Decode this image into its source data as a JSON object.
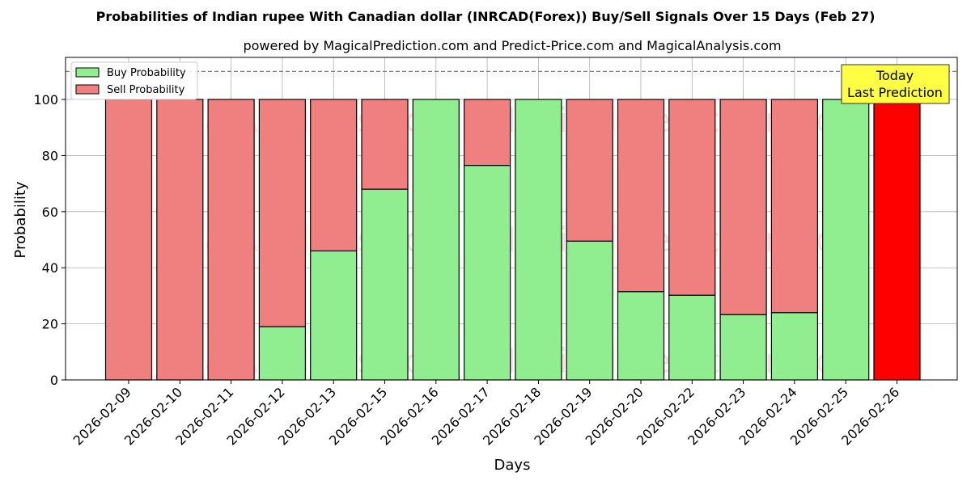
{
  "chart_data": {
    "type": "bar",
    "stacked": true,
    "title": "Probabilities of Indian rupee With Canadian dollar (INRCAD(Forex)) Buy/Sell Signals Over 15 Days (Feb 27)",
    "subtitle": "powered by MagicalPrediction.com and Predict-Price.com and MagicalAnalysis.com",
    "xlabel": "Days",
    "ylabel": "Probability",
    "ylim": [
      0,
      115
    ],
    "yticks": [
      0,
      20,
      40,
      60,
      80,
      100
    ],
    "grid": true,
    "legend_position": "top-left",
    "reference_line": 110,
    "categories": [
      "2026-02-09",
      "2026-02-10",
      "2026-02-11",
      "2026-02-12",
      "2026-02-13",
      "2026-02-15",
      "2026-02-16",
      "2026-02-17",
      "2026-02-18",
      "2026-02-19",
      "2026-02-20",
      "2026-02-22",
      "2026-02-23",
      "2026-02-24",
      "2026-02-25",
      "2026-02-26"
    ],
    "series": [
      {
        "name": "Buy Probability",
        "color": "#90ee90",
        "values": [
          0,
          0,
          0,
          19,
          46,
          68,
          100,
          76.5,
          100,
          49.5,
          31.5,
          30.2,
          23.3,
          24,
          100,
          0
        ]
      },
      {
        "name": "Sell Probability",
        "color": "#f08080",
        "values": [
          100,
          100,
          100,
          81,
          54,
          32,
          0,
          23.5,
          0,
          50.5,
          68.5,
          69.8,
          76.7,
          76,
          0,
          100
        ]
      }
    ],
    "highlight": {
      "category": "2026-02-26",
      "color": "#ff0000"
    },
    "annotation": {
      "line1": "Today",
      "line2": "Last Prediction",
      "color": "#ffff44"
    },
    "watermarks": [
      "MagicalAnalysis.com",
      "MagicalPrediction.com"
    ]
  }
}
